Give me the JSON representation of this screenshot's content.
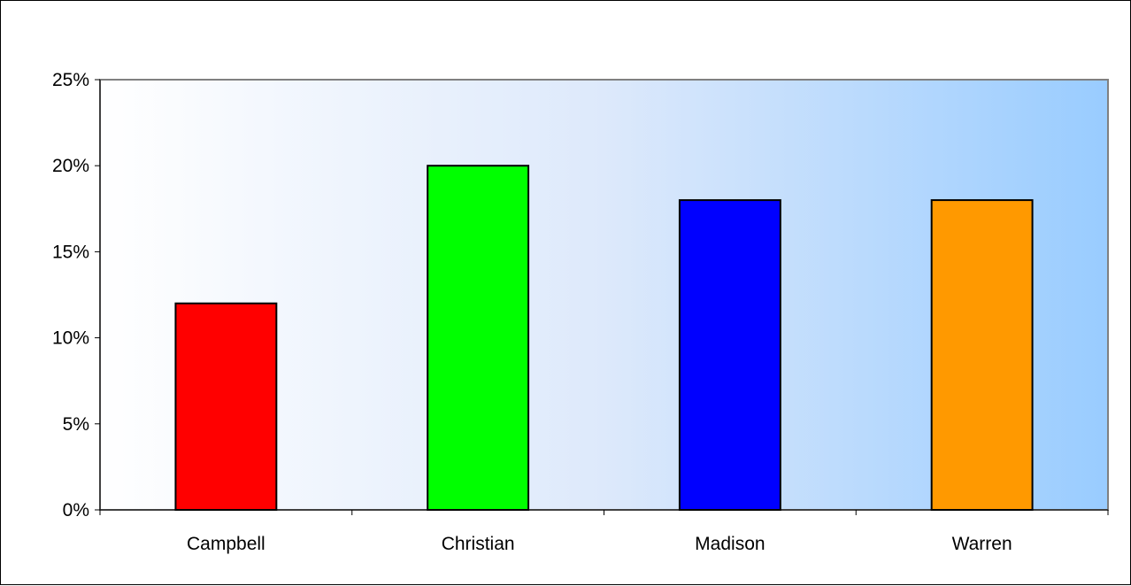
{
  "chart_data": {
    "type": "bar",
    "title": "",
    "xlabel": "",
    "ylabel": "",
    "categories": [
      "Campbell",
      "Christian",
      "Madison",
      "Warren"
    ],
    "values": [
      12,
      20,
      18,
      18
    ],
    "value_unit": "%",
    "ylim": [
      0,
      25
    ],
    "y_ticks": [
      0,
      5,
      10,
      15,
      20,
      25
    ],
    "y_tick_labels": [
      "0%",
      "5%",
      "10%",
      "15%",
      "20%",
      "25%"
    ],
    "bar_colors": [
      "#ff0000",
      "#00ff00",
      "#0000ff",
      "#ff9900"
    ],
    "grid": false,
    "legend": "none",
    "plot_background": "gradient white to light blue (#ffffff → #99ccff)"
  }
}
